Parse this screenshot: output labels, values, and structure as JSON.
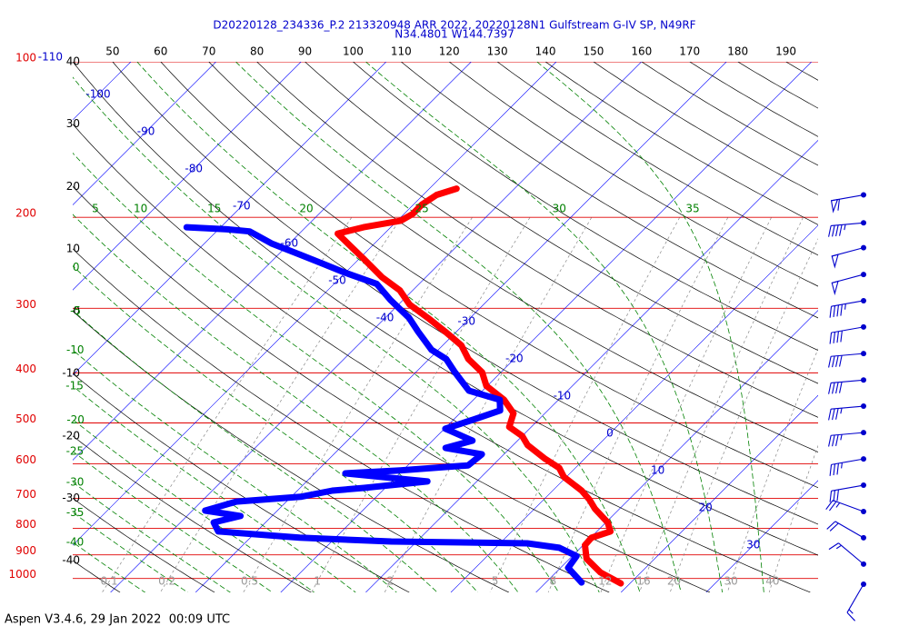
{
  "chart_data": {
    "type": "skewt",
    "title": "D20220128_234336_P.2 213320948 ARR 2022, 20220128N1 Gulfstream G-IV SP, N49RF",
    "subtitle": "N34.4801 W144.7397",
    "footer": "Aspen V3.4.6, 29 Jan 2022  00:09 UTC",
    "ylim": [
      100,
      1064
    ],
    "ylog": true,
    "yticks": [
      100,
      200,
      300,
      400,
      500,
      600,
      700,
      800,
      900,
      1000
    ],
    "xticks": [
      -110,
      -100,
      -90,
      -80,
      -70,
      -60,
      -50,
      -40,
      -30,
      -20,
      -10,
      0,
      10,
      20,
      30
    ],
    "dry_adiabat_top_ticks": [
      50,
      60,
      70,
      80,
      90,
      100,
      110,
      120,
      130,
      140,
      150,
      160,
      170,
      180,
      190
    ],
    "dry_adiabat_top_lim": [
      41.7,
      196.7
    ],
    "dry_adiabat_left_ticks": [
      40,
      30,
      20,
      10,
      0,
      -10,
      -20,
      -30,
      -40
    ],
    "dry_adiabat_left_lim": [
      40,
      -45.1
    ],
    "moist_adiabat_top_ticks": [
      5,
      10,
      15,
      20,
      25,
      30,
      35
    ],
    "moist_adiabat_left_ticks": [
      0,
      -5,
      -10,
      -15,
      -20,
      -25,
      -30,
      -35,
      -40
    ],
    "mixing_ratio_ticks": [
      0.1,
      0.2,
      0.5,
      1,
      2,
      5,
      8,
      12,
      16,
      20,
      30,
      40
    ],
    "series": [
      {
        "color": "#ff0000",
        "pressure": [
          1022,
          973,
          916,
          862,
          834,
          811,
          779,
          733,
          704,
          676,
          636,
          611,
          587,
          552,
          530,
          509,
          479,
          451,
          424,
          399,
          376,
          354,
          333,
          313,
          295,
          277,
          261,
          241,
          227,
          215,
          209,
          203,
          197,
          189,
          181,
          176
        ],
        "values": [
          18.9,
          15.2,
          12.0,
          10.2,
          10.1,
          11.6,
          10.2,
          7.1,
          5.4,
          3.4,
          -0.3,
          -1.9,
          -4.6,
          -8.3,
          -10.0,
          -12.6,
          -13.7,
          -16.4,
          -20.1,
          -22.2,
          -25.4,
          -27.8,
          -31.3,
          -35.0,
          -38.7,
          -41.5,
          -45.2,
          -49.4,
          -52.6,
          -55.5,
          -53.2,
          -49.6,
          -49.0,
          -49.0,
          -48.4,
          -46.8
        ]
      },
      {
        "color": "#0000ff",
        "pressure": [
          1018,
          954,
          905,
          872,
          855,
          848,
          834,
          811,
          779,
          757,
          739,
          710,
          695,
          676,
          668,
          649,
          626,
          618,
          604,
          575,
          559,
          541,
          513,
          493,
          473,
          451,
          433,
          399,
          376,
          361,
          333,
          313,
          289,
          269,
          256,
          246,
          236,
          225,
          213,
          211,
          209
        ],
        "values": [
          14.2,
          10.9,
          10.5,
          7.5,
          3.2,
          -13.0,
          -24.2,
          -34.5,
          -36.1,
          -33.7,
          -38.5,
          -35.9,
          -28.9,
          -25.9,
          -22.5,
          -15.8,
          -26.4,
          -20.3,
          -12.9,
          -12.6,
          -17.6,
          -15.3,
          -19.9,
          -17.7,
          -15.6,
          -16.9,
          -21.6,
          -25.4,
          -28.0,
          -30.8,
          -34.5,
          -37.2,
          -41.5,
          -45.0,
          -50.0,
          -53.7,
          -57.5,
          -62.0,
          -66.1,
          -69.0,
          -74.0
        ]
      }
    ],
    "wind": {
      "color": "#0000cc",
      "pressure": [
        181,
        205,
        229,
        258,
        290,
        326,
        367,
        413,
        464,
        522,
        587,
        660,
        742,
        834,
        938,
        1026
      ],
      "speed": [
        60,
        45,
        50,
        50,
        45,
        40,
        40,
        40,
        35,
        35,
        35,
        30,
        25,
        20,
        15,
        15
      ],
      "direction": [
        260,
        265,
        255,
        255,
        260,
        260,
        265,
        265,
        265,
        265,
        260,
        260,
        290,
        300,
        310,
        210
      ]
    }
  }
}
